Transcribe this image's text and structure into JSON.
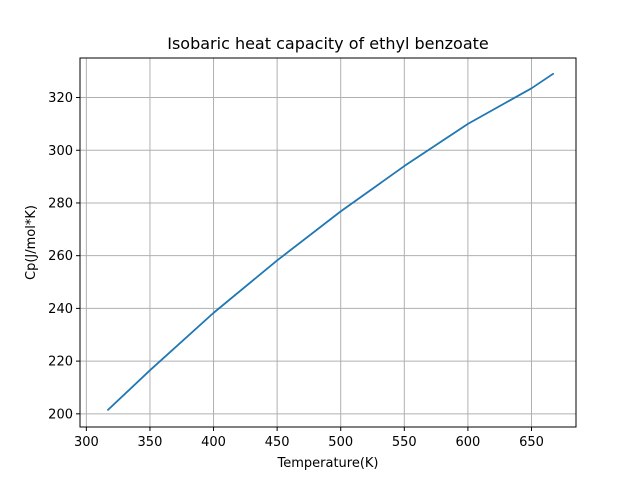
{
  "chart_data": {
    "type": "line",
    "title": "Isobaric heat capacity of ethyl benzoate",
    "xlabel": "Temperature(K)",
    "ylabel": "Cp(J/mol*K)",
    "xlim": [
      295,
      685
    ],
    "ylim": [
      195,
      335
    ],
    "xticks": [
      300,
      350,
      400,
      450,
      500,
      550,
      600,
      650
    ],
    "yticks": [
      200,
      220,
      240,
      260,
      280,
      300,
      320
    ],
    "grid": true,
    "series": [
      {
        "color": "#1f77b4",
        "x": [
          317,
          350,
          400,
          450,
          500,
          550,
          600,
          650,
          667
        ],
        "y": [
          201.5,
          216.5,
          238.3,
          258.2,
          276.8,
          294.0,
          310.0,
          323.5,
          329.0
        ]
      }
    ]
  }
}
